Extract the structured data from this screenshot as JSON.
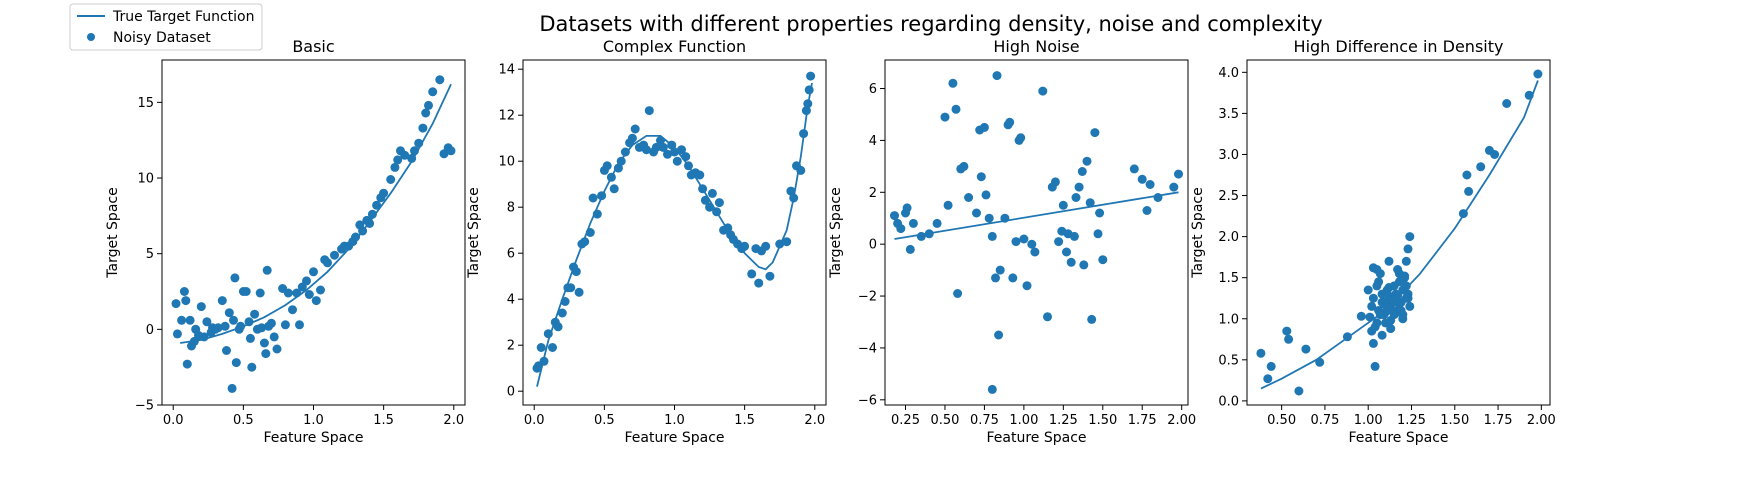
{
  "figure": {
    "title": "Datasets with different properties regarding density, noise and complexity",
    "legend": {
      "placement": "top-left",
      "line_label": "True Target Function",
      "points_label": "Noisy Dataset"
    },
    "series_color": "#1f77b4"
  },
  "chart_data": [
    {
      "type": "scatter",
      "title": "Basic",
      "xlabel": "Feature Space",
      "ylabel": "Target Space",
      "xlim": [
        -0.08,
        2.08
      ],
      "ylim": [
        -5,
        17.8
      ],
      "xticks": [
        {
          "v": 0,
          "t": "0.0"
        },
        {
          "v": 0.5,
          "t": "0.5"
        },
        {
          "v": 1,
          "t": "1.0"
        },
        {
          "v": 1.5,
          "t": "1.5"
        },
        {
          "v": 2,
          "t": "2.0"
        }
      ],
      "yticks": [
        {
          "v": -5,
          "t": "−5"
        },
        {
          "v": 0,
          "t": "0"
        },
        {
          "v": 5,
          "t": "5"
        },
        {
          "v": 10,
          "t": "10"
        },
        {
          "v": 15,
          "t": "15"
        }
      ],
      "line": {
        "x": [
          0.05,
          0.2,
          0.35,
          0.5,
          0.65,
          0.8,
          0.95,
          1.1,
          1.25,
          1.4,
          1.55,
          1.7,
          1.85,
          1.98
        ],
        "y": [
          -0.9,
          -0.7,
          -0.3,
          0.2,
          0.8,
          1.6,
          2.6,
          3.8,
          5.3,
          7.1,
          9.0,
          11.1,
          13.6,
          16.2
        ]
      },
      "points": {
        "x": [
          0.02,
          0.03,
          0.06,
          0.08,
          0.09,
          0.1,
          0.12,
          0.13,
          0.15,
          0.16,
          0.18,
          0.2,
          0.22,
          0.24,
          0.27,
          0.28,
          0.3,
          0.32,
          0.35,
          0.37,
          0.38,
          0.4,
          0.42,
          0.43,
          0.44,
          0.45,
          0.47,
          0.48,
          0.5,
          0.52,
          0.54,
          0.55,
          0.56,
          0.58,
          0.6,
          0.62,
          0.63,
          0.65,
          0.66,
          0.67,
          0.68,
          0.7,
          0.72,
          0.74,
          0.78,
          0.8,
          0.82,
          0.85,
          0.88,
          0.9,
          0.92,
          0.95,
          0.97,
          1.0,
          1.02,
          1.05,
          1.08,
          1.1,
          1.15,
          1.2,
          1.22,
          1.25,
          1.28,
          1.3,
          1.33,
          1.35,
          1.38,
          1.4,
          1.42,
          1.45,
          1.48,
          1.5,
          1.55,
          1.58,
          1.6,
          1.62,
          1.65,
          1.7,
          1.72,
          1.75,
          1.78,
          1.8,
          1.82,
          1.85,
          1.9,
          1.93,
          1.96,
          1.98
        ],
        "y": [
          1.7,
          -0.3,
          0.6,
          2.5,
          1.9,
          -2.3,
          0.6,
          -1.1,
          -0.8,
          0.0,
          -0.4,
          1.5,
          -0.5,
          0.5,
          -0.2,
          0.1,
          0.0,
          0.1,
          1.9,
          0.2,
          -1.4,
          1.1,
          -3.9,
          0.6,
          3.4,
          -2.2,
          0.0,
          0.2,
          2.5,
          2.5,
          0.5,
          -0.6,
          -2.5,
          1.0,
          0.0,
          2.4,
          0.1,
          -0.9,
          -1.6,
          3.9,
          0.2,
          0.4,
          -0.5,
          -1.3,
          2.7,
          0.3,
          2.4,
          1.3,
          2.4,
          0.3,
          2.8,
          3.2,
          2.3,
          3.8,
          1.9,
          2.6,
          4.6,
          4.4,
          4.9,
          5.3,
          5.5,
          5.5,
          5.8,
          6.1,
          6.9,
          6.5,
          7.2,
          7.0,
          7.6,
          8.2,
          8.7,
          9.0,
          9.9,
          10.7,
          11.2,
          11.8,
          11.5,
          11.3,
          11.8,
          12.3,
          13.3,
          14.3,
          14.8,
          15.7,
          16.5,
          11.6,
          12.0,
          11.8
        ]
      }
    },
    {
      "type": "scatter",
      "title": "Complex Function",
      "xlabel": "Feature Space",
      "ylabel": "Target Space",
      "xlim": [
        -0.08,
        2.08
      ],
      "ylim": [
        -0.6,
        14.4
      ],
      "xticks": [
        {
          "v": 0,
          "t": "0.0"
        },
        {
          "v": 0.5,
          "t": "0.5"
        },
        {
          "v": 1,
          "t": "1.0"
        },
        {
          "v": 1.5,
          "t": "1.5"
        },
        {
          "v": 2,
          "t": "2.0"
        }
      ],
      "yticks": [
        {
          "v": 0,
          "t": "0"
        },
        {
          "v": 2,
          "t": "2"
        },
        {
          "v": 4,
          "t": "4"
        },
        {
          "v": 6,
          "t": "6"
        },
        {
          "v": 8,
          "t": "8"
        },
        {
          "v": 10,
          "t": "10"
        },
        {
          "v": 12,
          "t": "12"
        },
        {
          "v": 14,
          "t": "14"
        }
      ],
      "line": {
        "x": [
          0.02,
          0.1,
          0.2,
          0.3,
          0.4,
          0.5,
          0.6,
          0.7,
          0.8,
          0.9,
          1.0,
          1.1,
          1.2,
          1.3,
          1.4,
          1.5,
          1.6,
          1.65,
          1.7,
          1.8,
          1.85,
          1.9,
          1.95,
          1.98
        ],
        "y": [
          0.2,
          2.2,
          4.0,
          5.7,
          7.3,
          8.7,
          9.9,
          10.7,
          11.1,
          11.1,
          10.6,
          9.8,
          8.8,
          7.8,
          6.8,
          6.0,
          5.4,
          5.3,
          5.6,
          7.0,
          8.4,
          10.2,
          12.4,
          13.4
        ]
      },
      "points": {
        "x": [
          0.02,
          0.03,
          0.05,
          0.07,
          0.1,
          0.13,
          0.15,
          0.17,
          0.2,
          0.22,
          0.24,
          0.26,
          0.28,
          0.3,
          0.32,
          0.34,
          0.36,
          0.4,
          0.42,
          0.45,
          0.48,
          0.5,
          0.52,
          0.55,
          0.57,
          0.6,
          0.62,
          0.65,
          0.68,
          0.7,
          0.72,
          0.75,
          0.78,
          0.8,
          0.82,
          0.85,
          0.87,
          0.9,
          0.92,
          0.95,
          0.98,
          1.0,
          1.02,
          1.05,
          1.08,
          1.1,
          1.12,
          1.15,
          1.18,
          1.2,
          1.22,
          1.25,
          1.27,
          1.3,
          1.32,
          1.35,
          1.38,
          1.4,
          1.42,
          1.45,
          1.48,
          1.5,
          1.55,
          1.58,
          1.6,
          1.62,
          1.65,
          1.68,
          1.75,
          1.8,
          1.83,
          1.85,
          1.87,
          1.9,
          1.92,
          1.94,
          1.95,
          1.96,
          1.97
        ],
        "y": [
          1.0,
          1.1,
          1.9,
          1.3,
          2.5,
          1.9,
          3.0,
          2.8,
          3.4,
          3.9,
          4.5,
          4.5,
          5.4,
          5.2,
          4.3,
          6.4,
          6.5,
          6.9,
          8.4,
          7.7,
          8.5,
          9.6,
          9.8,
          9.3,
          8.8,
          9.7,
          10.0,
          10.4,
          10.8,
          11.0,
          11.4,
          10.6,
          10.7,
          10.5,
          12.2,
          10.4,
          10.6,
          10.9,
          10.6,
          10.3,
          10.7,
          10.4,
          10.0,
          10.5,
          10.2,
          9.8,
          9.4,
          9.5,
          9.4,
          8.8,
          8.3,
          8.0,
          8.6,
          7.8,
          8.2,
          7.0,
          7.1,
          6.8,
          6.6,
          6.4,
          6.2,
          6.3,
          5.1,
          6.2,
          4.7,
          6.1,
          6.3,
          5.0,
          6.4,
          6.5,
          8.7,
          8.4,
          9.8,
          9.6,
          11.2,
          12.2,
          12.5,
          13.1,
          13.7
        ]
      }
    },
    {
      "type": "scatter",
      "title": "High Noise",
      "xlabel": "Feature Space",
      "ylabel": "Target Space",
      "xlim": [
        0.12,
        2.04
      ],
      "ylim": [
        -6.2,
        7.1
      ],
      "xticks": [
        {
          "v": 0.25,
          "t": "0.25"
        },
        {
          "v": 0.5,
          "t": "0.50"
        },
        {
          "v": 0.75,
          "t": "0.75"
        },
        {
          "v": 1.0,
          "t": "1.00"
        },
        {
          "v": 1.25,
          "t": "1.25"
        },
        {
          "v": 1.5,
          "t": "1.50"
        },
        {
          "v": 1.75,
          "t": "1.75"
        },
        {
          "v": 2.0,
          "t": "2.00"
        }
      ],
      "yticks": [
        {
          "v": -6,
          "t": "−6"
        },
        {
          "v": -4,
          "t": "−4"
        },
        {
          "v": -2,
          "t": "−2"
        },
        {
          "v": 0,
          "t": "0"
        },
        {
          "v": 2,
          "t": "2"
        },
        {
          "v": 4,
          "t": "4"
        },
        {
          "v": 6,
          "t": "6"
        }
      ],
      "line": {
        "x": [
          0.18,
          1.98
        ],
        "y": [
          0.2,
          2.0
        ]
      },
      "points": {
        "x": [
          0.18,
          0.2,
          0.22,
          0.25,
          0.26,
          0.28,
          0.3,
          0.35,
          0.4,
          0.45,
          0.5,
          0.52,
          0.55,
          0.57,
          0.58,
          0.62,
          0.65,
          0.7,
          0.72,
          0.73,
          0.75,
          0.76,
          0.78,
          0.8,
          0.82,
          0.83,
          0.85,
          0.88,
          0.9,
          0.91,
          0.93,
          0.95,
          0.97,
          0.98,
          1.0,
          1.02,
          1.05,
          1.07,
          1.12,
          1.15,
          1.18,
          1.2,
          1.22,
          1.24,
          1.25,
          1.27,
          1.28,
          1.3,
          1.32,
          1.33,
          1.35,
          1.37,
          1.38,
          1.4,
          1.42,
          1.43,
          1.45,
          1.47,
          1.48,
          1.5,
          1.7,
          1.75,
          1.78,
          1.8,
          1.85,
          1.95,
          1.98,
          0.8,
          0.6,
          0.84
        ],
        "y": [
          1.1,
          0.8,
          0.6,
          1.2,
          1.4,
          -0.2,
          0.8,
          0.3,
          0.4,
          0.8,
          4.9,
          1.5,
          6.2,
          5.2,
          -1.9,
          3.0,
          1.8,
          1.2,
          4.4,
          2.6,
          4.5,
          1.9,
          1.0,
          0.3,
          -1.3,
          6.5,
          -1.0,
          1.0,
          4.6,
          4.7,
          -1.3,
          0.1,
          4.0,
          4.1,
          0.2,
          -1.6,
          0.0,
          -0.3,
          5.9,
          -2.8,
          2.2,
          2.4,
          0.1,
          0.5,
          1.5,
          -0.3,
          0.4,
          -0.7,
          0.3,
          1.8,
          2.2,
          2.8,
          -0.8,
          3.2,
          1.6,
          -2.9,
          4.3,
          0.4,
          1.2,
          -0.6,
          2.9,
          2.5,
          1.3,
          2.3,
          1.8,
          2.2,
          2.7,
          -5.6,
          2.9,
          -3.5
        ]
      }
    },
    {
      "type": "scatter",
      "title": "High Difference in Density",
      "xlabel": "Feature Space",
      "ylabel": "Target Space",
      "xlim": [
        0.3,
        2.05
      ],
      "ylim": [
        -0.05,
        4.15
      ],
      "xticks": [
        {
          "v": 0.5,
          "t": "0.50"
        },
        {
          "v": 0.75,
          "t": "0.75"
        },
        {
          "v": 1.0,
          "t": "1.00"
        },
        {
          "v": 1.25,
          "t": "1.25"
        },
        {
          "v": 1.5,
          "t": "1.50"
        },
        {
          "v": 1.75,
          "t": "1.75"
        },
        {
          "v": 2.0,
          "t": "2.00"
        }
      ],
      "yticks": [
        {
          "v": 0,
          "t": "0.0"
        },
        {
          "v": 0.5,
          "t": "0.5"
        },
        {
          "v": 1.0,
          "t": "1.0"
        },
        {
          "v": 1.5,
          "t": "1.5"
        },
        {
          "v": 2.0,
          "t": "2.0"
        },
        {
          "v": 2.5,
          "t": "2.5"
        },
        {
          "v": 3.0,
          "t": "3.0"
        },
        {
          "v": 3.5,
          "t": "3.5"
        },
        {
          "v": 4.0,
          "t": "4.0"
        }
      ],
      "line": {
        "x": [
          0.38,
          0.5,
          0.7,
          0.9,
          1.1,
          1.3,
          1.5,
          1.7,
          1.9,
          1.98
        ],
        "y": [
          0.15,
          0.27,
          0.5,
          0.8,
          1.1,
          1.55,
          2.1,
          2.75,
          3.45,
          3.9
        ]
      },
      "points": {
        "x": [
          0.38,
          0.42,
          0.44,
          0.53,
          0.54,
          0.6,
          0.64,
          0.72,
          0.88,
          0.96,
          1.0,
          1.01,
          1.02,
          1.03,
          1.03,
          1.04,
          1.05,
          1.05,
          1.06,
          1.07,
          1.08,
          1.08,
          1.09,
          1.1,
          1.1,
          1.11,
          1.12,
          1.12,
          1.13,
          1.14,
          1.15,
          1.15,
          1.16,
          1.17,
          1.18,
          1.18,
          1.19,
          1.2,
          1.2,
          1.21,
          1.22,
          1.22,
          1.23,
          1.23,
          1.24,
          1.02,
          1.04,
          1.06,
          1.08,
          1.1,
          1.12,
          1.14,
          1.16,
          1.18,
          1.2,
          1.22,
          1.24,
          1.03,
          1.07,
          1.11,
          1.15,
          1.19,
          1.23,
          1.05,
          1.13,
          1.21,
          1.09,
          1.17,
          1.55,
          1.57,
          1.58,
          1.65,
          1.7,
          1.73,
          1.8,
          1.93,
          1.98
        ],
        "y": [
          0.58,
          0.27,
          0.42,
          0.85,
          0.75,
          0.12,
          0.63,
          0.47,
          0.78,
          1.03,
          1.35,
          1.02,
          0.85,
          1.62,
          1.25,
          0.42,
          0.95,
          1.4,
          1.1,
          1.55,
          0.8,
          1.3,
          1.05,
          1.2,
          0.95,
          1.35,
          1.7,
          1.15,
          0.98,
          1.25,
          1.4,
          1.05,
          1.3,
          1.6,
          1.12,
          1.45,
          1.2,
          1.35,
          1.05,
          1.5,
          1.25,
          1.7,
          1.85,
          1.3,
          2.0,
          1.15,
          0.9,
          1.45,
          1.2,
          1.08,
          1.38,
          1.1,
          1.22,
          1.55,
          1.0,
          1.4,
          1.15,
          0.7,
          1.05,
          1.3,
          1.2,
          1.1,
          1.25,
          1.6,
          0.88,
          1.52,
          1.18,
          1.28,
          2.28,
          2.75,
          2.55,
          2.85,
          3.05,
          3.0,
          3.62,
          3.72,
          3.98
        ]
      }
    }
  ]
}
